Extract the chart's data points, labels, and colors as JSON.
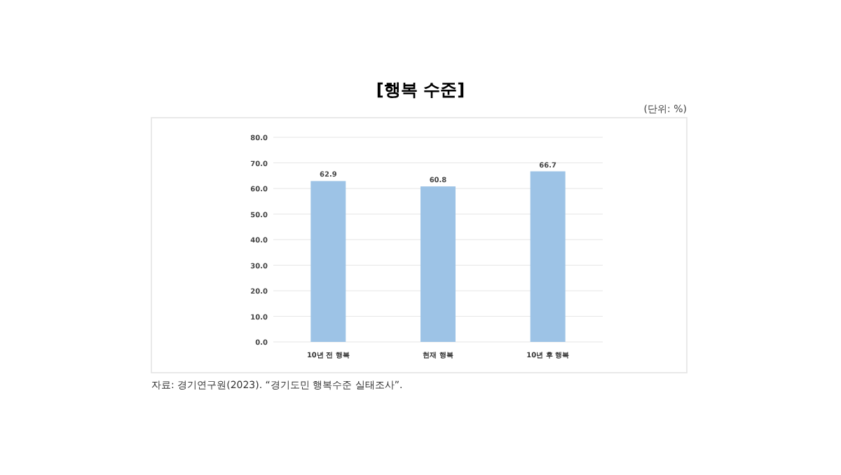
{
  "chart_data": {
    "type": "bar",
    "title": "[행복 수준]",
    "annotations": [
      "(단위: %)",
      "자료: 경기연구원(2023). “경기도민 행복수준 실태조사”."
    ],
    "categories": [
      "10년 전 행복",
      "현재 행복",
      "10년 후 행복"
    ],
    "values": [
      62.9,
      60.8,
      66.7
    ],
    "color": "#9dc3e6",
    "ylim": [
      0,
      80
    ],
    "yticks": [
      {
        "value": 0,
        "label": "0.0"
      },
      {
        "value": 10,
        "label": "10.0"
      },
      {
        "value": 20,
        "label": "20.0"
      },
      {
        "value": 30,
        "label": "30.0"
      },
      {
        "value": 40,
        "label": "40.0"
      },
      {
        "value": 50,
        "label": "50.0"
      },
      {
        "value": 60,
        "label": "60.0"
      },
      {
        "value": 70,
        "label": "70.0"
      },
      {
        "value": 80,
        "label": "80.0"
      }
    ],
    "grid": "y",
    "data_labels": true
  }
}
